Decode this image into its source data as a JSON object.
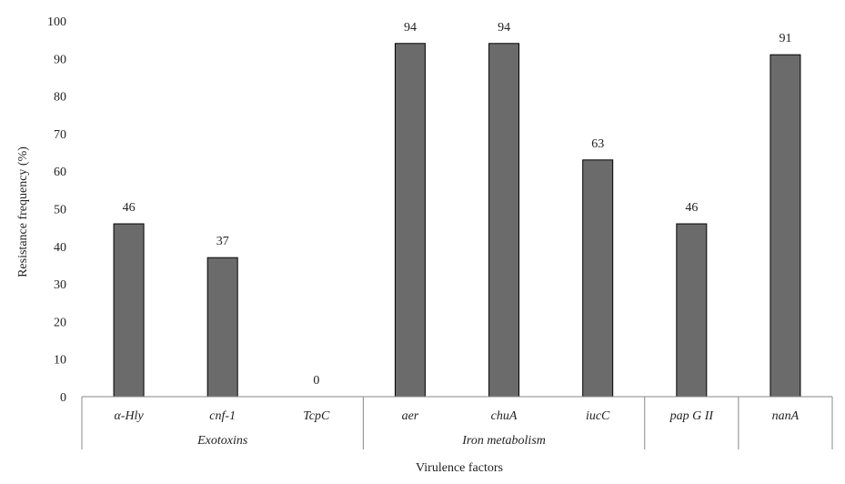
{
  "chart_data": {
    "type": "bar",
    "categories": [
      "α-Hly",
      "cnf-1",
      "TcpC",
      "aer",
      "chuA",
      "iucC",
      "pap G II",
      "nanA"
    ],
    "groups": [
      {
        "label": "Exotoxins",
        "categories": [
          "α-Hly",
          "cnf-1",
          "TcpC"
        ]
      },
      {
        "label": "Iron metabolism",
        "categories": [
          "aer",
          "chuA",
          "iucC"
        ]
      },
      {
        "label": "",
        "categories": [
          "pap G II"
        ]
      },
      {
        "label": "",
        "categories": [
          "nanA"
        ]
      }
    ],
    "values": [
      46,
      37,
      0,
      94,
      94,
      63,
      46,
      91
    ],
    "data_labels": [
      "46",
      "37",
      "0",
      "94",
      "94",
      "63",
      "46",
      "91"
    ],
    "ylabel": "Resistance frequency (%)",
    "xlabel": "Virulence factors",
    "ylim": [
      0,
      100
    ],
    "yticks": [
      "0",
      "10",
      "20",
      "30",
      "40",
      "50",
      "60",
      "70",
      "80",
      "90",
      "100"
    ],
    "grid": false,
    "bar_color": "#6b6b6b"
  }
}
